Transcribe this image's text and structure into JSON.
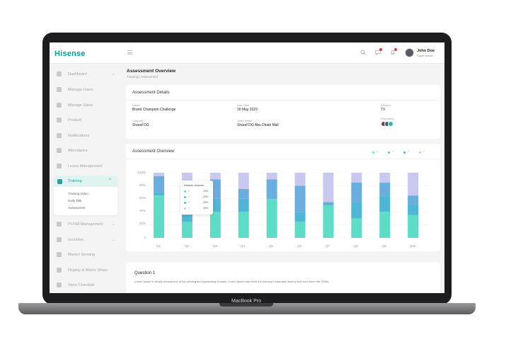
{
  "app": {
    "logo": "Hisense"
  },
  "laptop_label": "MacBook Pro",
  "topbar": {
    "user_name": "John Doe",
    "user_role": "Super Admin"
  },
  "sidebar": {
    "items": [
      {
        "label": "Dashboard",
        "chevron": "⌄"
      },
      {
        "label": "Manage Users"
      },
      {
        "label": "Manage Sales"
      },
      {
        "label": "Product"
      },
      {
        "label": "Notifications"
      },
      {
        "label": "Attendance"
      },
      {
        "label": "Leave Management"
      },
      {
        "label": "POSM Management",
        "chevron": "⌄"
      },
      {
        "label": "Incentive",
        "chevron": "⌄"
      },
      {
        "label": "Market Sensing"
      },
      {
        "label": "Display & Matrix Share"
      },
      {
        "label": "Store Checklist"
      }
    ],
    "training": {
      "label": "Training",
      "chevron": "^",
      "sub_items": [
        "Training Video",
        "Daily Talk",
        "Assessment"
      ]
    }
  },
  "page": {
    "title": "Assessment Overview",
    "breadcrumb": "Training | Assessment"
  },
  "details": {
    "title": "Assessment Details",
    "fields": {
      "name": {
        "label": "Name",
        "value": "Brand Champion Challenge"
      },
      "due_date": {
        "label": "Due Date",
        "value": "30 May 2023"
      },
      "division": {
        "label": "Division",
        "value": "TV"
      },
      "channel": {
        "label": "Channel",
        "value": "Sharaf DG"
      },
      "store_name": {
        "label": "Store Name",
        "value": "Sharaf DG Abu Dhabi Mall"
      },
      "promoters": {
        "label": "Promoters"
      }
    }
  },
  "overview": {
    "title": "Assessment Overview",
    "legend": [
      {
        "color": "#5fdcc8",
        "num": "4"
      },
      {
        "color": "#6aaee0",
        "num": "3"
      },
      {
        "color": "#4fb6d6",
        "num": "2"
      },
      {
        "color": "#c9c9ef",
        "num": "1"
      }
    ],
    "tooltip": {
      "title": "Answer choices",
      "rows": [
        {
          "label": "4",
          "value": "15%",
          "color": "#5fdcc8"
        },
        {
          "label": "3",
          "value": "20%",
          "color": "#6aaee0"
        },
        {
          "label": "2",
          "value": "25%",
          "color": "#4fb6d6"
        },
        {
          "label": "1",
          "value": "40%",
          "color": "#c9c9ef"
        }
      ]
    }
  },
  "chart_data": {
    "type": "bar",
    "stacked": true,
    "categories": [
      "Q1",
      "Q2",
      "Q3",
      "Q4",
      "Q5",
      "Q6",
      "Q7",
      "Q8",
      "Q9",
      "Q10"
    ],
    "yticks": [
      "100%",
      "80%",
      "60%",
      "40%",
      "20%",
      "0"
    ],
    "ylim": [
      0,
      100
    ],
    "series": [
      {
        "color": "#5fdcc8",
        "values": [
          65,
          25,
          40,
          40,
          60,
          25,
          50,
          30,
          40,
          35
        ]
      },
      {
        "color": "#4fb6d6",
        "values": [
          5,
          10,
          20,
          20,
          0,
          15,
          0,
          25,
          25,
          15
        ]
      },
      {
        "color": "#6aaee0",
        "values": [
          25,
          30,
          30,
          15,
          30,
          40,
          5,
          30,
          20,
          15
        ]
      },
      {
        "color": "#c9c9ef",
        "values": [
          5,
          35,
          10,
          25,
          10,
          20,
          45,
          15,
          15,
          35
        ]
      }
    ],
    "legend_position": "top-right"
  },
  "question": {
    "title": "Question 1",
    "text": "Lorem Ipsum is simply dummy text of the printing and typesetting industry. Lorem Ipsum has been the industry's standard dummy text ever since the 1500s,"
  }
}
